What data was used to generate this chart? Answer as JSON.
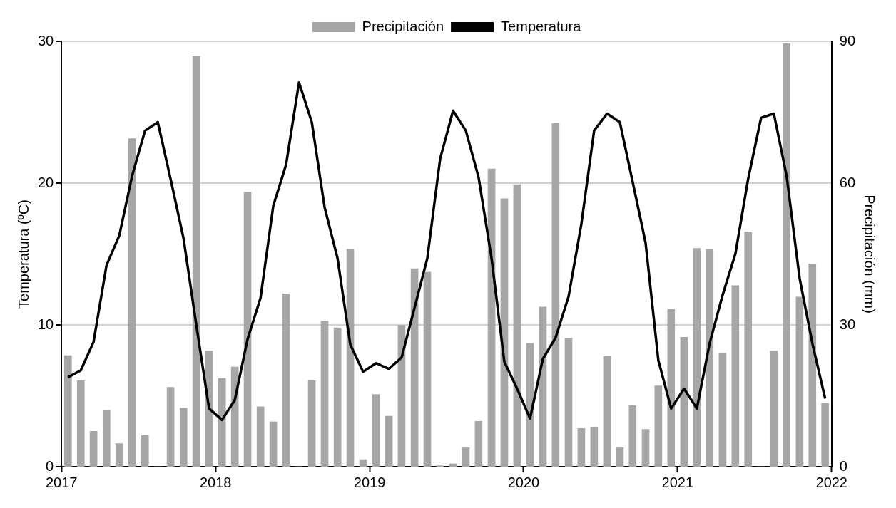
{
  "chart_data": {
    "type": "bar",
    "ylabel": "Temperatura (ºC)",
    "y2label": "Precipitación (mm)",
    "x": [
      2017.042,
      2017.125,
      2017.208,
      2017.292,
      2017.375,
      2017.458,
      2017.542,
      2017.625,
      2017.708,
      2017.792,
      2017.875,
      2017.958,
      2018.042,
      2018.125,
      2018.208,
      2018.292,
      2018.375,
      2018.458,
      2018.542,
      2018.625,
      2018.708,
      2018.792,
      2018.875,
      2018.958,
      2019.042,
      2019.125,
      2019.208,
      2019.292,
      2019.375,
      2019.458,
      2019.542,
      2019.625,
      2019.708,
      2019.792,
      2019.875,
      2019.958,
      2020.042,
      2020.125,
      2020.208,
      2020.292,
      2020.375,
      2020.458,
      2020.542,
      2020.625,
      2020.708,
      2020.792,
      2020.875,
      2020.958,
      2021.042,
      2021.125,
      2021.208,
      2021.292,
      2021.375,
      2021.458,
      2021.542,
      2021.625,
      2021.708,
      2021.792,
      2021.875,
      2021.958
    ],
    "series": [
      {
        "name": "Precipitación",
        "axis": "y2",
        "color": "#a6a6a6",
        "values": [
          23.5,
          18.2,
          7.5,
          11.9,
          4.9,
          69.4,
          6.6,
          0,
          16.8,
          12.4,
          86.8,
          24.5,
          18.7,
          21.1,
          58.1,
          12.7,
          9.5,
          36.6,
          0,
          18.2,
          30.8,
          29.4,
          46.0,
          1.5,
          15.3,
          10.7,
          29.9,
          41.9,
          41.2,
          0.2,
          0.6,
          4.0,
          9.6,
          63.0,
          56.7,
          59.7,
          26.1,
          33.8,
          72.6,
          27.2,
          8.1,
          8.3,
          23.3,
          4.0,
          12.9,
          7.9,
          17.1,
          33.3,
          27.4,
          46.2,
          46.0,
          24.0,
          38.3,
          49.7,
          0,
          24.5,
          89.5,
          35.9,
          42.9,
          13.4
        ]
      },
      {
        "name": "Temperatura",
        "type": "line",
        "axis": "y",
        "color": "#000000",
        "marker": "none",
        "line_style": "solid",
        "values": [
          6.3,
          6.8,
          8.8,
          14.2,
          16.3,
          20.5,
          23.7,
          24.3,
          20.3,
          16.1,
          10.0,
          4.1,
          3.3,
          4.7,
          9.0,
          11.9,
          18.4,
          21.3,
          27.1,
          24.3,
          18.3,
          14.7,
          8.6,
          6.7,
          7.3,
          6.9,
          7.7,
          11.2,
          14.7,
          21.7,
          25.1,
          23.7,
          20.4,
          14.7,
          7.4,
          5.5,
          3.4,
          7.6,
          9.1,
          12.0,
          17.1,
          23.7,
          24.9,
          24.3,
          20.1,
          15.8,
          7.5,
          4.1,
          5.5,
          4.1,
          8.7,
          12.1,
          15.0,
          20.3,
          24.6,
          24.9,
          20.5,
          13.3,
          8.7,
          4.8
        ]
      }
    ],
    "xlim": [
      2017,
      2022
    ],
    "xticks": [
      2017,
      2018,
      2019,
      2020,
      2021,
      2022
    ],
    "ylim": [
      0,
      30
    ],
    "yticks": [
      0,
      10,
      20,
      30
    ],
    "y2lim": [
      0,
      90
    ],
    "y2ticks": [
      0,
      30,
      60,
      90
    ],
    "grid": "y",
    "legend": "top"
  }
}
